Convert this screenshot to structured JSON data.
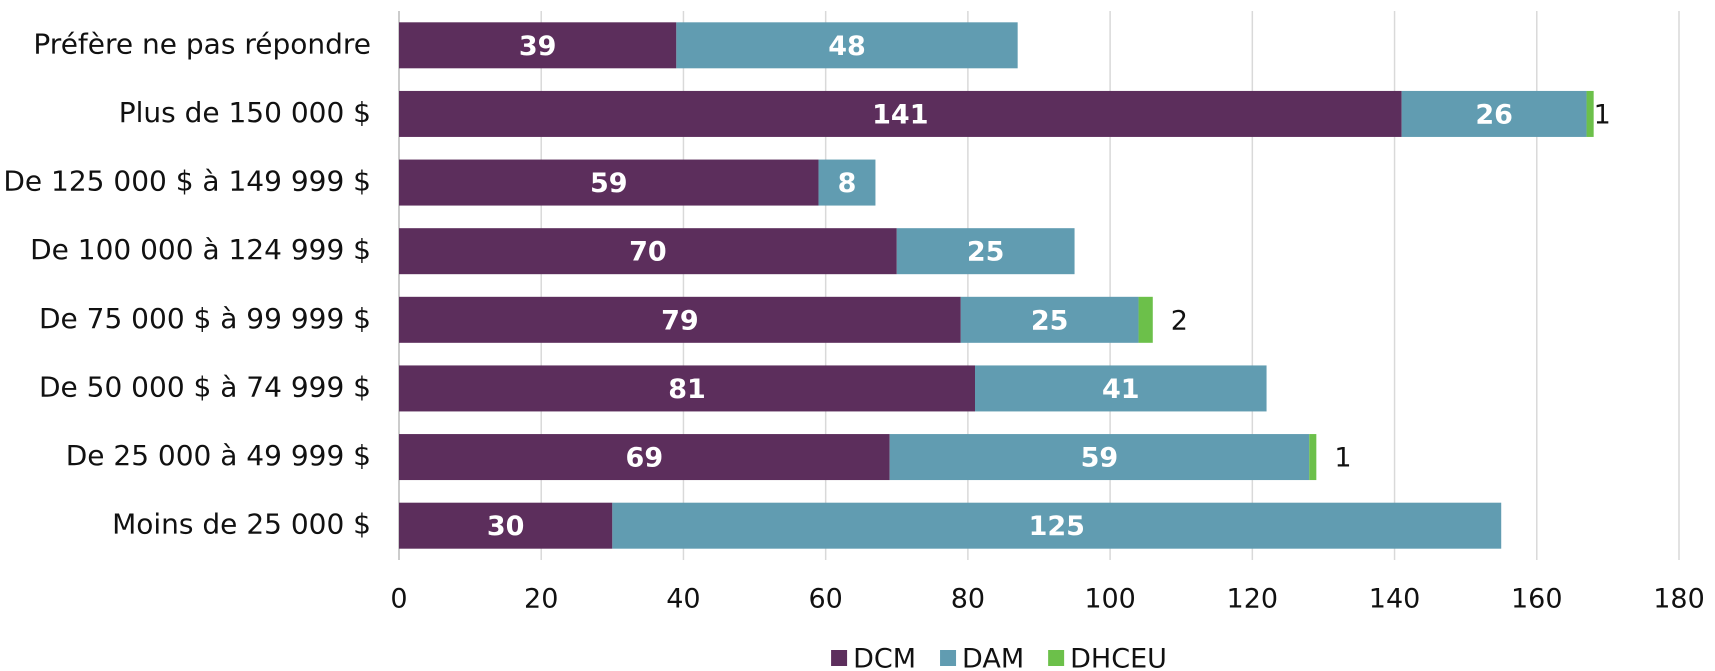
{
  "chart_data": {
    "type": "bar",
    "orientation": "horizontal",
    "stacked": true,
    "categories": [
      "Préfère ne pas répondre",
      "Plus de 150 000 $",
      "De 125 000 $ à 149 999 $",
      "De 100 000 à 124 999 $",
      "De 75 000 $ à 99 999 $",
      "De 50 000 $ à 74 999 $",
      "De 25 000 à 49 999 $",
      "Moins de 25 000 $"
    ],
    "series": [
      {
        "name": "DCM",
        "color": "#5c2e5c",
        "values": [
          39,
          141,
          59,
          70,
          79,
          81,
          69,
          30
        ]
      },
      {
        "name": "DAM",
        "color": "#619cb1",
        "values": [
          48,
          26,
          8,
          25,
          25,
          41,
          59,
          125
        ]
      },
      {
        "name": "DHCEU",
        "color": "#6cc04a",
        "values": [
          null,
          1,
          null,
          null,
          2,
          null,
          1,
          null
        ]
      }
    ],
    "xlim": [
      0,
      180
    ],
    "xticks": [
      0,
      20,
      40,
      60,
      80,
      100,
      120,
      140,
      160,
      180
    ],
    "grid": true,
    "legend": "bottom"
  }
}
